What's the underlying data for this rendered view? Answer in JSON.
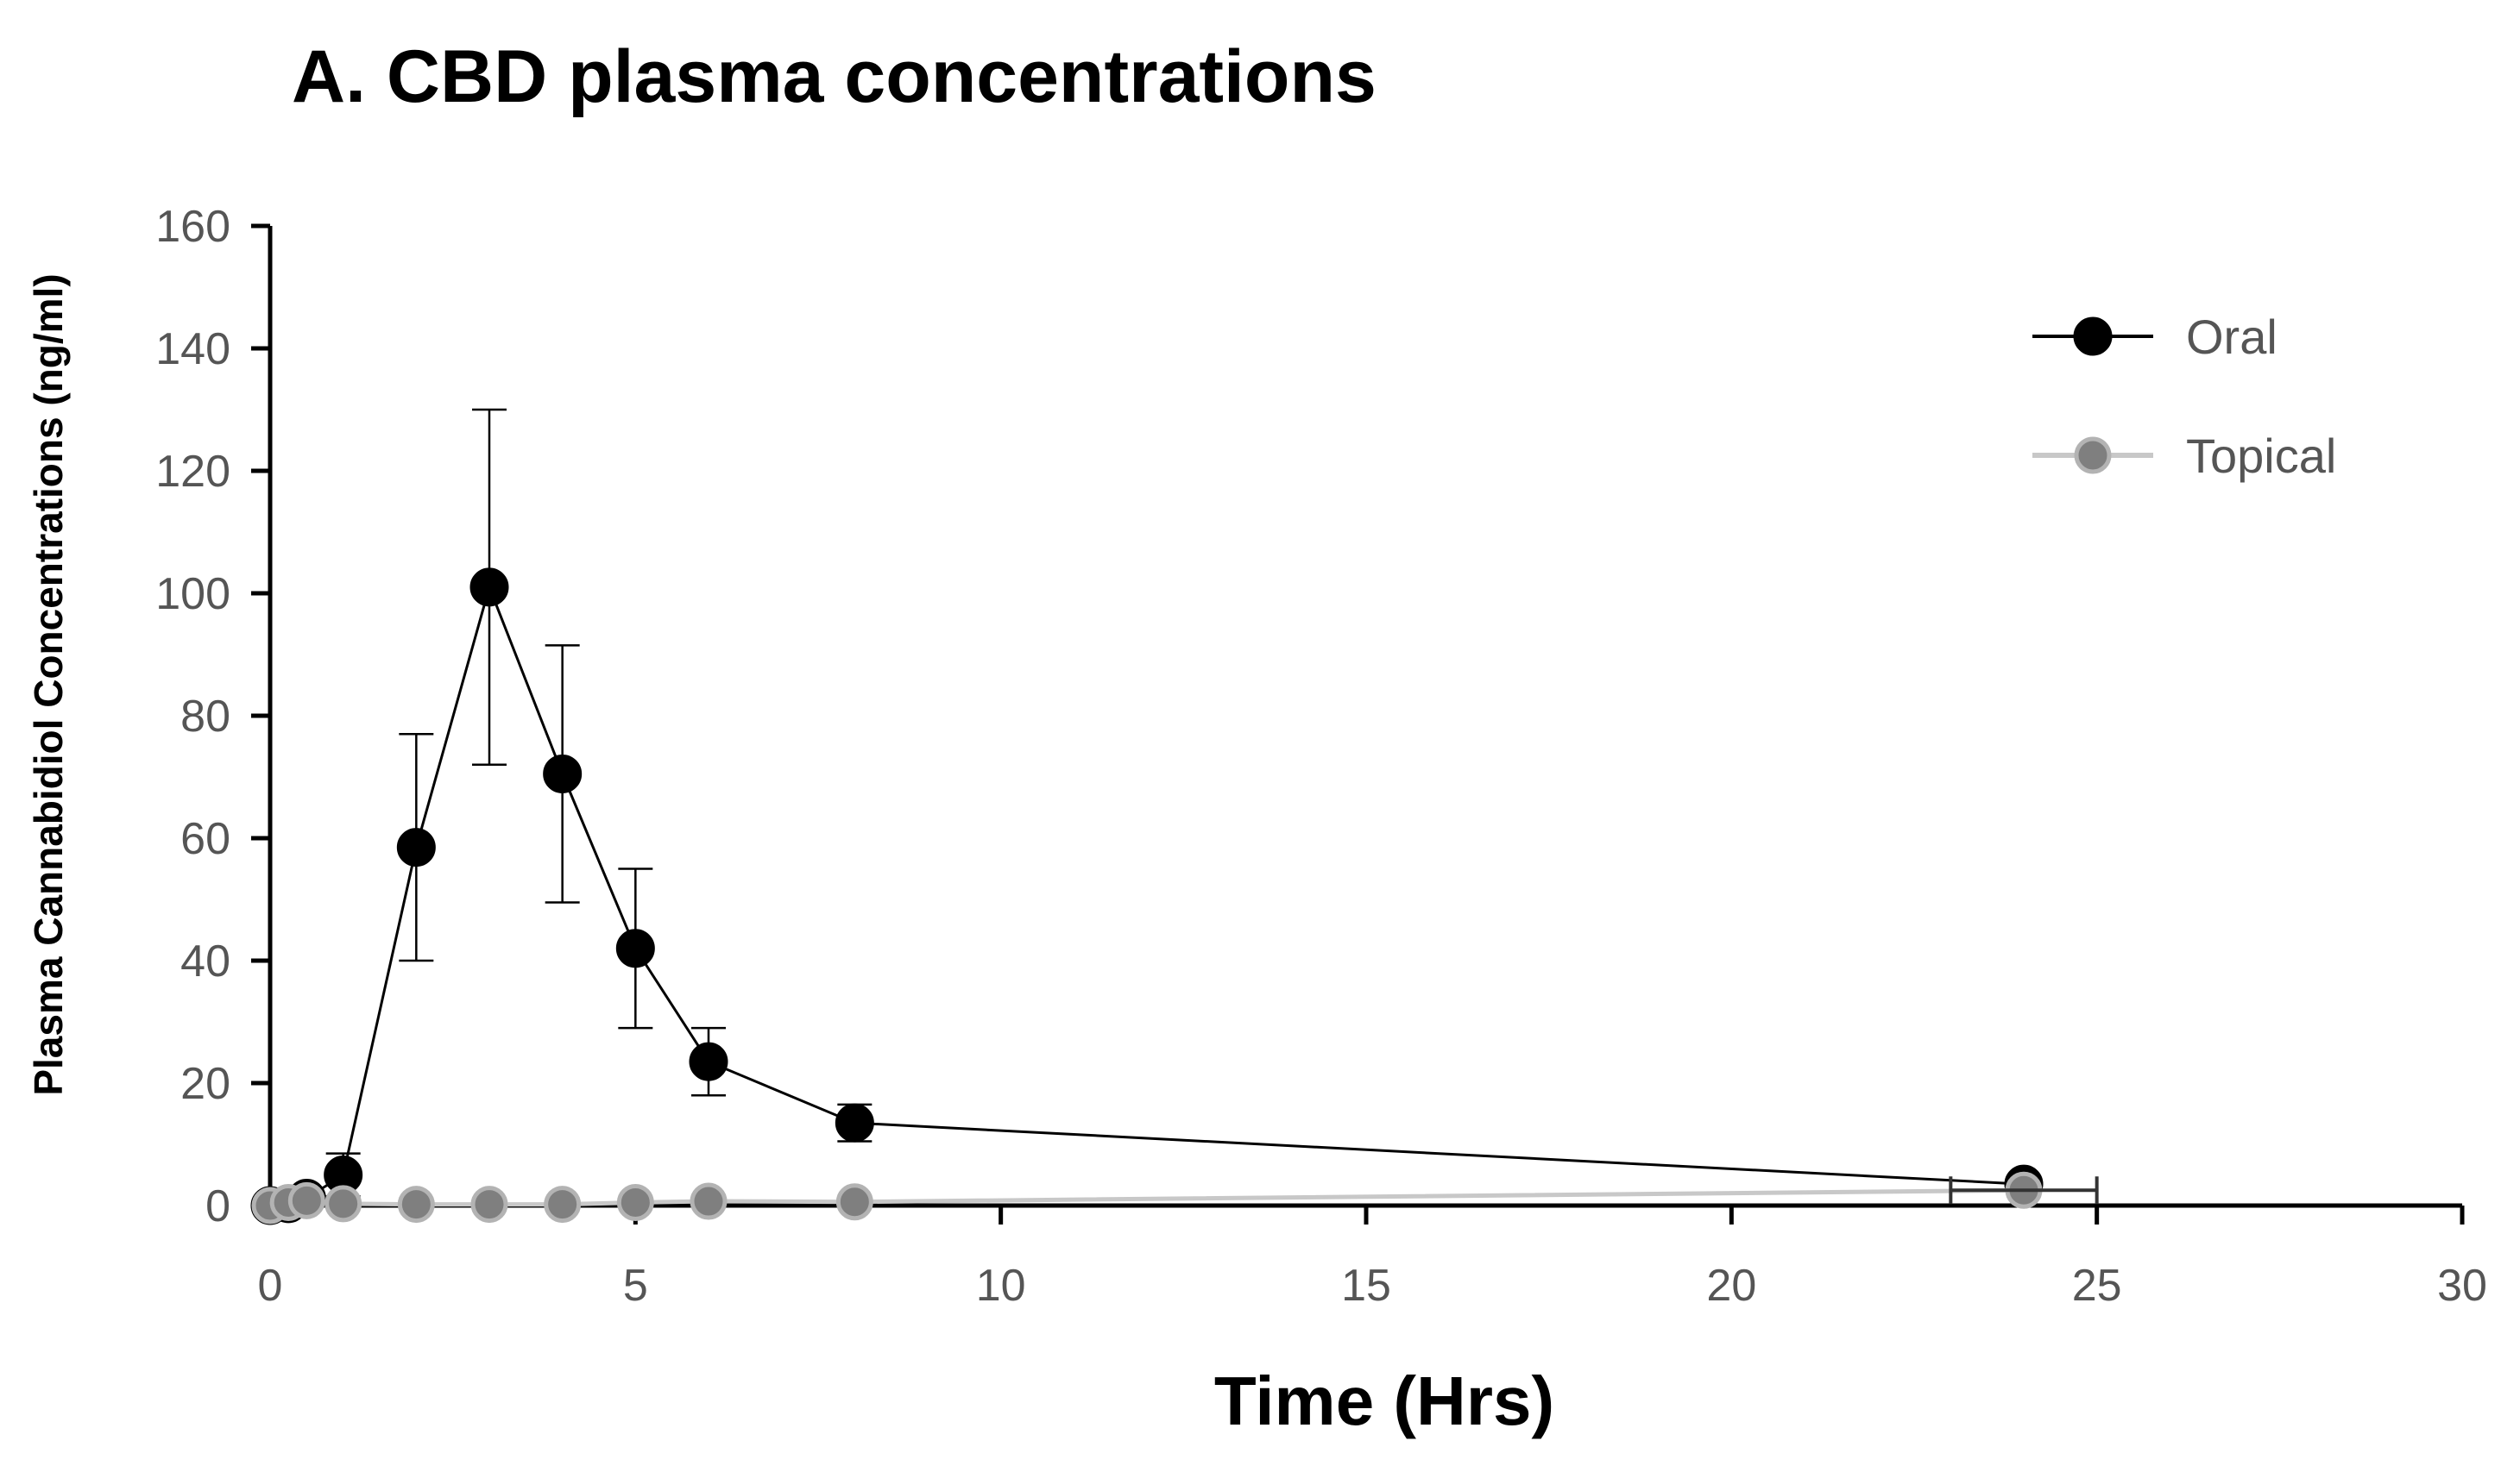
{
  "chart_data": {
    "type": "line",
    "title": "A. CBD plasma concentrations",
    "xlabel": "Time (Hrs)",
    "ylabel": "Plasma Cannabidiol Concentrations (ng/ml)",
    "xlim": [
      0,
      30
    ],
    "ylim": [
      0,
      160
    ],
    "xticks": [
      "0",
      "5",
      "10",
      "15",
      "20",
      "25",
      "30"
    ],
    "yticks": [
      "0",
      "20",
      "40",
      "60",
      "80",
      "100",
      "120",
      "140",
      "160"
    ],
    "grid": false,
    "legend_position": "top-right",
    "series": [
      {
        "name": "Oral",
        "color": "#000000",
        "points": [
          {
            "x": 0,
            "y": 0,
            "err": 0
          },
          {
            "x": 0.25,
            "y": 0.3,
            "err": 0.5
          },
          {
            "x": 0.5,
            "y": 1.2,
            "err": 1
          },
          {
            "x": 1,
            "y": 5,
            "err": 3.5
          },
          {
            "x": 2,
            "y": 58.5,
            "err": 18.5
          },
          {
            "x": 3,
            "y": 101,
            "err": 29
          },
          {
            "x": 4,
            "y": 70.5,
            "err": 21
          },
          {
            "x": 5,
            "y": 42,
            "err": 13
          },
          {
            "x": 6,
            "y": 23.5,
            "err": 5.5
          },
          {
            "x": 8,
            "y": 13.5,
            "err": 3
          },
          {
            "x": 24,
            "y": 3.5,
            "err": 0.8
          }
        ]
      },
      {
        "name": "Topical",
        "color": "#808080",
        "points": [
          {
            "x": 0,
            "y": 0,
            "err": 0
          },
          {
            "x": 0.25,
            "y": 0.5,
            "err": 0.3
          },
          {
            "x": 0.5,
            "y": 0.8,
            "err": 0.4
          },
          {
            "x": 1,
            "y": 0.3,
            "err": 0.3
          },
          {
            "x": 2,
            "y": 0.2,
            "err": 0.2
          },
          {
            "x": 3,
            "y": 0.2,
            "err": 0.2
          },
          {
            "x": 4,
            "y": 0.2,
            "err": 0.2
          },
          {
            "x": 5,
            "y": 0.5,
            "err": 0.3
          },
          {
            "x": 6,
            "y": 0.7,
            "err": 0.4
          },
          {
            "x": 8,
            "y": 0.6,
            "err": 0.4
          },
          {
            "x": 24,
            "y": 2.5,
            "err": 0.5
          }
        ]
      }
    ]
  }
}
